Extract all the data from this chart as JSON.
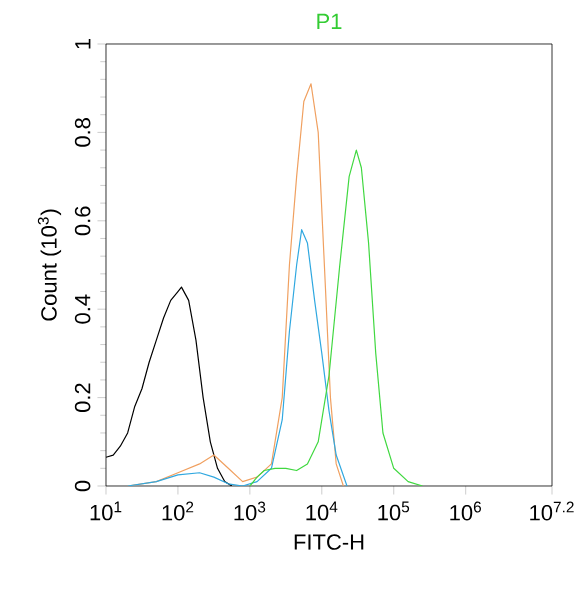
{
  "chart_data": {
    "type": "line",
    "title": "P1",
    "xlabel": "FITC-H",
    "ylabel": "Count (10$^{3}$)",
    "log": "x",
    "marker": "none",
    "line_style": "solid",
    "xlim": [
      10,
      15848932
    ],
    "ylim": [
      0,
      1
    ],
    "xticks": [
      {
        "value": 10,
        "label": "10$^{1}$"
      },
      {
        "value": 100,
        "label": "10$^{2}$"
      },
      {
        "value": 1000,
        "label": "10$^{3}$"
      },
      {
        "value": 10000,
        "label": "10$^{4}$"
      },
      {
        "value": 100000,
        "label": "10$^{5}$"
      },
      {
        "value": 1000000,
        "label": "10$^{6}$"
      },
      {
        "value": 15848932,
        "label": "10$^{7.2}$"
      }
    ],
    "yticks": [
      0,
      0.2,
      0.4,
      0.6,
      0.8,
      1
    ],
    "series": [
      {
        "color": "#000000",
        "x": [
          10,
          12.6,
          15.8,
          20,
          25.1,
          31.6,
          39.8,
          50.1,
          63.1,
          79.4,
          100,
          112,
          141,
          178,
          224,
          282,
          355,
          447,
          562
        ],
        "values": [
          0.065,
          0.07,
          0.09,
          0.12,
          0.18,
          0.22,
          0.28,
          0.33,
          0.38,
          0.42,
          0.44,
          0.45,
          0.42,
          0.33,
          0.2,
          0.1,
          0.04,
          0.01,
          0
        ]
      },
      {
        "color": "#f0a060",
        "x": [
          20,
          50.1,
          100,
          200,
          316,
          501,
          794,
          1259,
          1995,
          2818,
          3548,
          4467,
          5623,
          7079,
          8913,
          11220,
          13183,
          15849,
          19953
        ],
        "values": [
          0,
          0.01,
          0.03,
          0.05,
          0.07,
          0.04,
          0.01,
          0.02,
          0.05,
          0.2,
          0.5,
          0.7,
          0.87,
          0.91,
          0.8,
          0.45,
          0.2,
          0.05,
          0
        ]
      },
      {
        "color": "#30a8e0",
        "x": [
          20,
          50.1,
          100,
          200,
          316,
          501,
          794,
          1259,
          1995,
          2818,
          3548,
          4467,
          5248,
          6310,
          7943,
          10000,
          12589,
          15849,
          22387
        ],
        "values": [
          0,
          0.01,
          0.025,
          0.03,
          0.02,
          0.005,
          0,
          0.01,
          0.04,
          0.15,
          0.35,
          0.5,
          0.58,
          0.55,
          0.42,
          0.3,
          0.17,
          0.07,
          0
        ]
      },
      {
        "color": "#40d840",
        "x": [
          1000,
          1259,
          1585,
          2239,
          3162,
          4467,
          6310,
          8913,
          12589,
          17783,
          23988,
          30200,
          35481,
          44668,
          56234,
          70795,
          100000,
          158489,
          251189
        ],
        "values": [
          0,
          0.02,
          0.035,
          0.04,
          0.04,
          0.035,
          0.05,
          0.1,
          0.25,
          0.5,
          0.7,
          0.76,
          0.72,
          0.55,
          0.3,
          0.12,
          0.04,
          0.01,
          0
        ]
      }
    ]
  }
}
